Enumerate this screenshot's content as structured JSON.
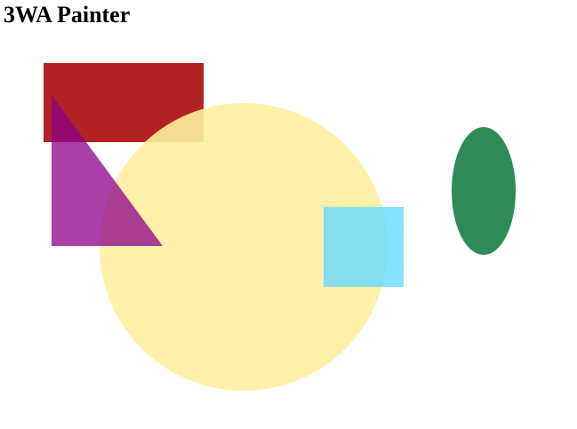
{
  "app": {
    "title": "3WA Painter"
  },
  "canvas": {
    "background": "#ffffff",
    "shapes": [
      {
        "kind": "rectangle",
        "name": "red-rectangle",
        "color": "#b22222",
        "opacity": 1.0
      },
      {
        "kind": "circle",
        "name": "yellow-circle",
        "color": "#fff0a0",
        "opacity": 0.9
      },
      {
        "kind": "triangle",
        "name": "purple-triangle",
        "color": "#8b008b",
        "opacity": 0.75
      },
      {
        "kind": "square",
        "name": "cyan-square",
        "color": "#66d9ff",
        "opacity": 0.8
      },
      {
        "kind": "ellipse",
        "name": "green-ellipse",
        "color": "#2e8b57",
        "opacity": 1.0
      }
    ]
  }
}
